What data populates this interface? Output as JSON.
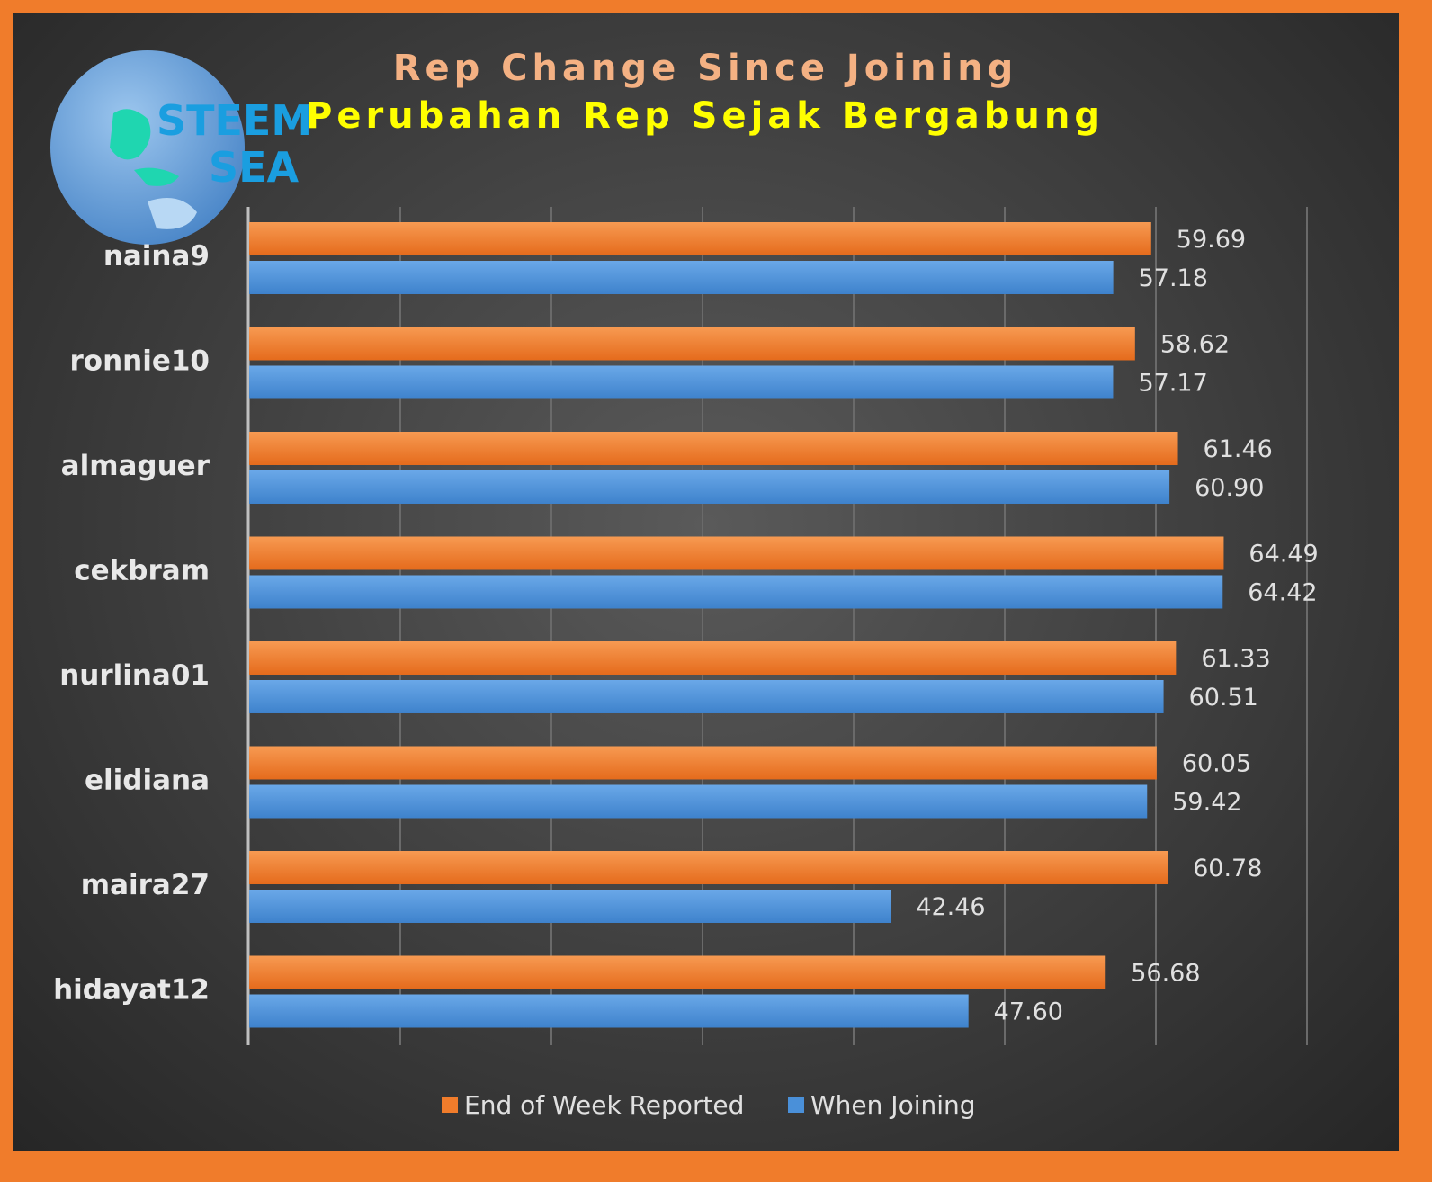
{
  "logo": {
    "line1": "STEEM",
    "line2": "SEA"
  },
  "chart_data": {
    "type": "bar",
    "orientation": "horizontal",
    "title": "Rep Change Since Joining",
    "subtitle": "Perubahan Rep Sejak Bergabung",
    "categories": [
      "naina9",
      "ronnie10",
      "almaguer",
      "cekbram",
      "nurlina01",
      "elidiana",
      "maira27",
      "hidayat12"
    ],
    "series": [
      {
        "name": "End of Week Reported",
        "color": "#f07c2b",
        "values": [
          59.69,
          58.62,
          61.46,
          64.49,
          61.33,
          60.05,
          60.78,
          56.68
        ],
        "labels": [
          "59.69",
          "58.62",
          "61.46",
          "64.49",
          "61.33",
          "60.05",
          "60.78",
          "56.68"
        ]
      },
      {
        "name": "When Joining",
        "color": "#4a90d9",
        "values": [
          57.18,
          57.17,
          60.9,
          64.42,
          60.51,
          59.42,
          42.46,
          47.6
        ],
        "labels": [
          "57.18",
          "57.17",
          "60.90",
          "64.42",
          "60.51",
          "59.42",
          "42.46",
          "47.60"
        ]
      }
    ],
    "xlim": [
      0,
      70
    ],
    "grid": true,
    "legend_position": "bottom"
  }
}
